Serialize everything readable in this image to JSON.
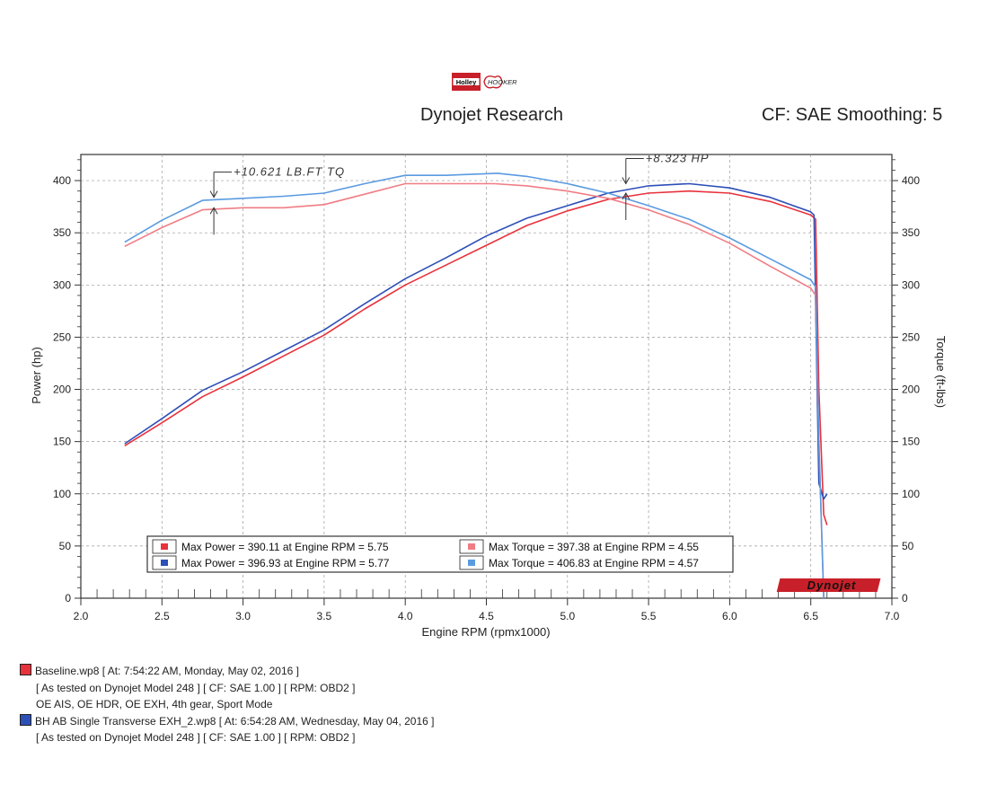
{
  "header": {
    "logo_left": "Holley",
    "logo_right": "HOOKER",
    "title": "Dynojet Research",
    "cf": "CF: SAE Smoothing: 5"
  },
  "colors": {
    "baseline": "#e8323c",
    "modified": "#2d4fb8",
    "baseline_torque": "#f07d85",
    "modified_torque": "#5a9be0"
  },
  "chart_data": {
    "type": "line",
    "xlabel": "Engine RPM (rpmx1000)",
    "ylabel_left": "Power (hp)",
    "ylabel_right": "Torque (ft-lbs)",
    "xlim": [
      2.0,
      7.0
    ],
    "ylim": [
      0,
      425
    ],
    "x_ticks": [
      "2.0",
      "2.5",
      "3.0",
      "3.5",
      "4.0",
      "4.5",
      "5.0",
      "5.5",
      "6.0",
      "6.5",
      "7.0"
    ],
    "y_ticks_left": [
      "0",
      "50",
      "100",
      "150",
      "200",
      "250",
      "300",
      "350",
      "400"
    ],
    "y_ticks_right": [
      "0",
      "50",
      "100",
      "150",
      "200",
      "250",
      "300",
      "350",
      "400"
    ],
    "grid": true,
    "legend_position": "bottom-center",
    "series": [
      {
        "name": "Baseline Power",
        "color": "#e8323c",
        "x": [
          2.27,
          2.5,
          2.75,
          3.0,
          3.25,
          3.5,
          3.75,
          4.0,
          4.25,
          4.5,
          4.75,
          5.0,
          5.25,
          5.5,
          5.75,
          6.0,
          6.25,
          6.5,
          6.53,
          6.55,
          6.58,
          6.6
        ],
        "y": [
          146,
          168,
          193,
          212,
          232,
          252,
          277,
          300,
          319,
          338,
          357,
          371,
          382,
          388,
          390,
          388,
          380,
          367,
          363,
          200,
          80,
          70
        ]
      },
      {
        "name": "Modified Power",
        "color": "#2d4fb8",
        "x": [
          2.27,
          2.5,
          2.75,
          3.0,
          3.25,
          3.5,
          3.75,
          4.0,
          4.25,
          4.5,
          4.75,
          5.0,
          5.25,
          5.5,
          5.75,
          6.0,
          6.25,
          6.5,
          6.52,
          6.55,
          6.58,
          6.6
        ],
        "y": [
          148,
          172,
          199,
          217,
          237,
          257,
          282,
          306,
          326,
          347,
          364,
          376,
          388,
          395,
          397,
          393,
          384,
          370,
          367,
          110,
          95,
          100
        ]
      },
      {
        "name": "Baseline Torque",
        "color": "#f07d85",
        "x": [
          2.27,
          2.5,
          2.75,
          3.0,
          3.25,
          3.5,
          3.75,
          4.0,
          4.25,
          4.55,
          4.75,
          5.0,
          5.25,
          5.5,
          5.75,
          6.0,
          6.25,
          6.5,
          6.53,
          6.55,
          6.58
        ],
        "y": [
          337,
          355,
          372,
          374,
          374,
          377,
          387,
          397,
          397,
          397,
          395,
          390,
          383,
          372,
          358,
          340,
          318,
          297,
          290,
          150,
          0
        ]
      },
      {
        "name": "Modified Torque",
        "color": "#5a9be0",
        "x": [
          2.27,
          2.5,
          2.75,
          3.0,
          3.25,
          3.5,
          3.75,
          4.0,
          4.25,
          4.57,
          4.75,
          5.0,
          5.25,
          5.5,
          5.75,
          6.0,
          6.25,
          6.5,
          6.53,
          6.55,
          6.58
        ],
        "y": [
          341,
          362,
          381,
          383,
          385,
          388,
          397,
          405,
          405,
          407,
          404,
          397,
          388,
          376,
          363,
          345,
          325,
          305,
          298,
          150,
          0
        ]
      }
    ],
    "legend": [
      {
        "color": "#e8323c",
        "text": "Max Power = 390.11 at Engine RPM = 5.75"
      },
      {
        "color": "#2d4fb8",
        "text": "Max Power = 396.93 at Engine RPM = 5.77"
      },
      {
        "color": "#f07d85",
        "text": "Max Torque = 397.38 at Engine RPM = 4.55"
      },
      {
        "color": "#5a9be0",
        "text": "Max Torque = 406.83 at Engine RPM = 4.57"
      }
    ],
    "annotations": [
      {
        "text": "+10.621 LB.FT TQ",
        "x": 2.82,
        "y1": 384,
        "y2": 374
      },
      {
        "text": "+8.323 HP",
        "x": 5.36,
        "y1": 397,
        "y2": 388
      }
    ],
    "brand_mark": "Dynojet"
  },
  "runs": [
    {
      "color": "#e8323c",
      "title": "Baseline.wp8 [ At: 7:54:22 AM, Monday, May 02, 2016 ]",
      "details": [
        "[ As tested on Dynojet Model 248 ]  [ CF: SAE 1.00 ]  [ RPM: OBD2 ]",
        "OE AIS, OE HDR, OE EXH, 4th gear, Sport Mode"
      ]
    },
    {
      "color": "#2d4fb8",
      "title": "BH AB Single Transverse EXH_2.wp8 [ At: 6:54:28 AM, Wednesday, May 04, 2016 ]",
      "details": [
        "[ As tested on Dynojet Model 248 ]  [ CF: SAE 1.00 ]  [ RPM: OBD2 ]"
      ]
    }
  ]
}
